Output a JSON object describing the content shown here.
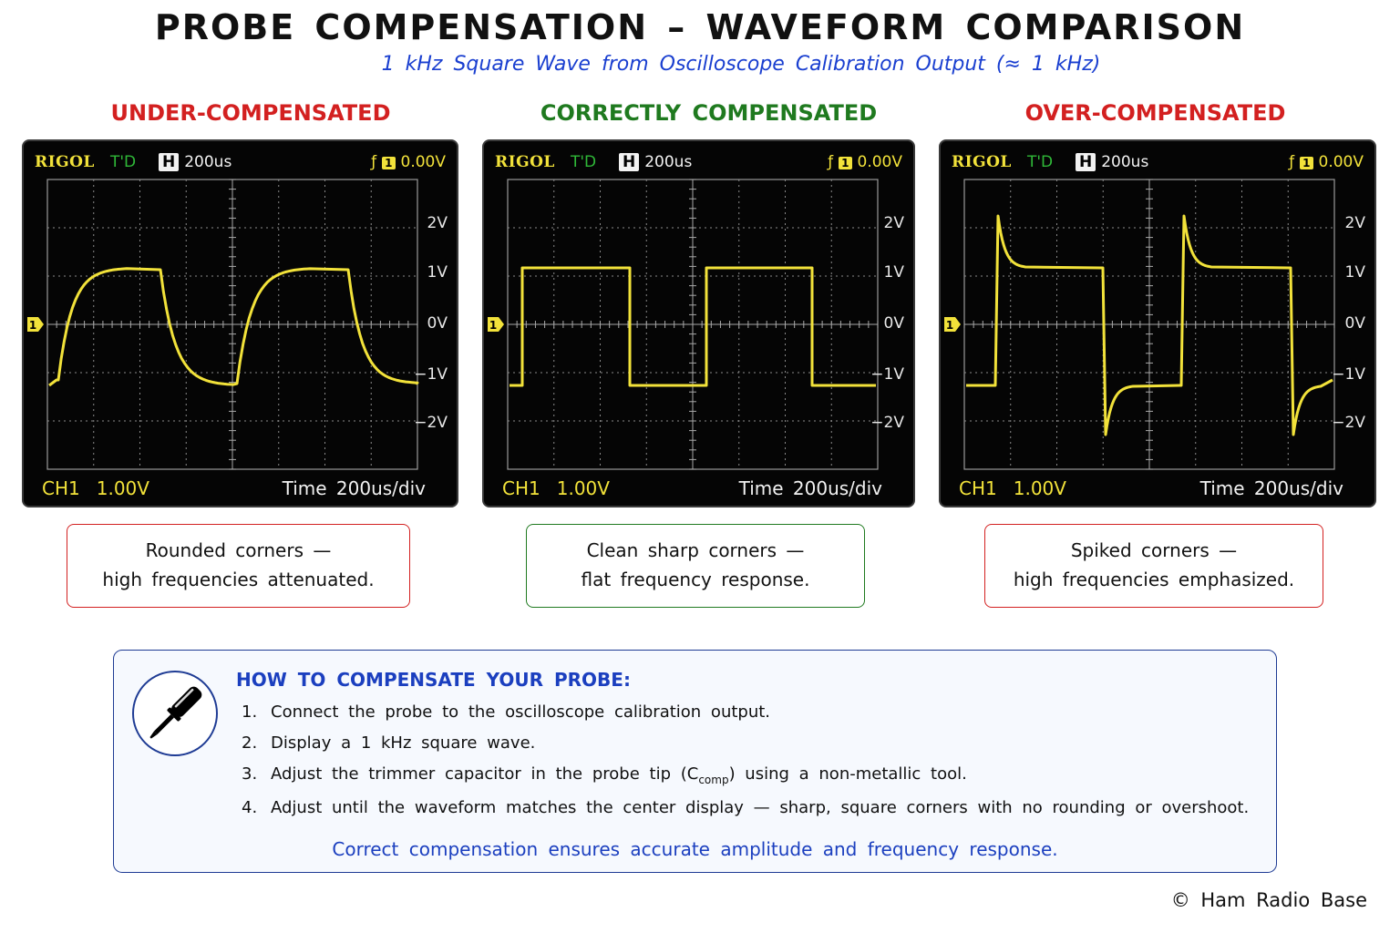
{
  "title": "PROBE COMPENSATION – WAVEFORM COMPARISON",
  "subtitle": "1 kHz Square Wave from Oscilloscope Calibration Output (≈ 1 kHz)",
  "colors": {
    "under": "#d32020",
    "correct": "#1f7a1f",
    "over": "#d32020",
    "trace": "#f2e23a",
    "accent": "#1b3fbf"
  },
  "scope_common": {
    "brand": "RIGOL",
    "mode": "T'D",
    "h_label": "H",
    "timebase": "200us",
    "trigger_icon": "ƒ",
    "trigger_channel": "1",
    "trigger_level": "0.00V",
    "channel_marker": "1",
    "volt_labels": [
      "2V",
      "1V",
      "0V",
      "−1V",
      "−2V"
    ],
    "footer_channel": "CH1",
    "footer_scale": "1.00V",
    "footer_time": "Time 200us/div"
  },
  "panels": [
    {
      "heading": "UNDER-COMPENSATED",
      "waveform": "under",
      "desc_line1": "Rounded corners —",
      "desc_line2": "high frequencies attenuated."
    },
    {
      "heading": "CORRECTLY COMPENSATED",
      "waveform": "correct",
      "desc_line1": "Clean sharp corners —",
      "desc_line2": "flat frequency response."
    },
    {
      "heading": "OVER-COMPENSATED",
      "waveform": "over",
      "desc_line1": "Spiked corners —",
      "desc_line2": "high frequencies emphasized."
    }
  ],
  "howto": {
    "icon": "screwdriver-icon",
    "title": "HOW TO COMPENSATE YOUR PROBE:",
    "steps": [
      {
        "num": "1.",
        "text": "Connect the probe to the oscilloscope calibration output."
      },
      {
        "num": "2.",
        "text": "Display a 1 kHz square wave."
      },
      {
        "num": "3.",
        "pre": "Adjust the trimmer capacitor in the probe tip (C",
        "sub": "comp",
        "post": ") using a non-metallic tool."
      },
      {
        "num": "4.",
        "text": "Adjust until the waveform matches the center display — sharp, square corners with no rounding or overshoot."
      }
    ],
    "note": "Correct compensation ensures accurate amplitude and frequency response."
  },
  "copyright": "© Ham Radio Base"
}
